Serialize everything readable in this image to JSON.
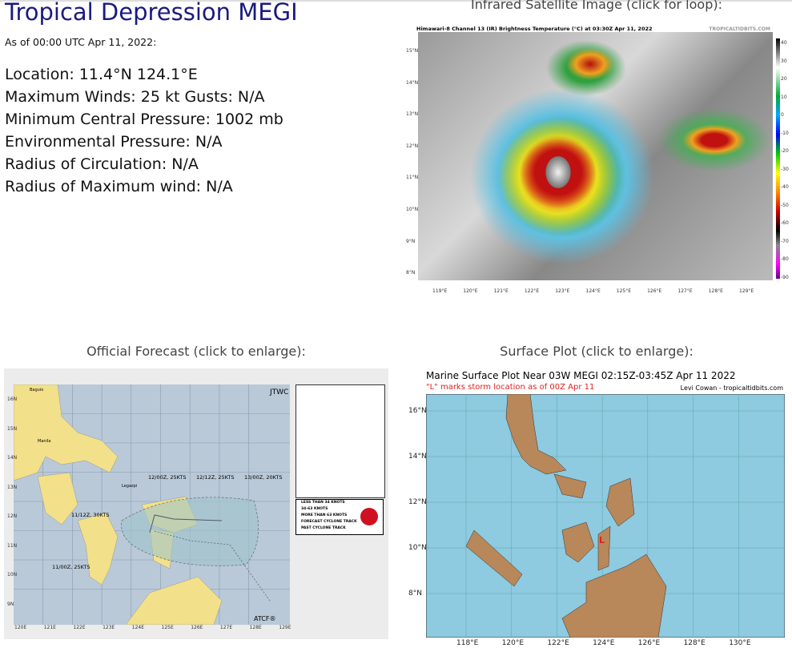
{
  "storm": {
    "title": "Tropical Depression MEGI",
    "as_of": "As of 00:00 UTC Apr 11, 2022:",
    "location": "Location: 11.4°N 124.1°E",
    "winds": "Maximum Winds: 25 kt  Gusts: N/A",
    "pressure": "Minimum Central Pressure: 1002 mb",
    "env_pressure": "Environmental Pressure: N/A",
    "radius_circ": "Radius of Circulation: N/A",
    "radius_max": "Radius of Maximum wind: N/A"
  },
  "satellite": {
    "caption": "Infrared Satellite Image (click for loop):",
    "title": "Himawari-8 Channel 13 (IR) Brightness Temperature (°C) at 03:30Z Apr 11, 2022",
    "credit": "TROPICALTIDBITS.COM",
    "lat_ticks": [
      "15°N",
      "14°N",
      "13°N",
      "12°N",
      "11°N",
      "10°N",
      "9°N",
      "8°N"
    ],
    "lon_ticks": [
      "119°E",
      "120°E",
      "121°E",
      "122°E",
      "123°E",
      "124°E",
      "125°E",
      "126°E",
      "127°E",
      "128°E",
      "129°E"
    ],
    "colorbar": [
      "40",
      "30",
      "20",
      "10",
      "0",
      "-10",
      "-20",
      "-30",
      "-40",
      "-50",
      "-60",
      "-70",
      "-80",
      "-90"
    ]
  },
  "forecast": {
    "caption": "Official Forecast (click to enlarge):",
    "agency": "JTWC",
    "footer": "ATCF®",
    "labels": [
      "12/00Z, 25KTS",
      "12/12Z, 25KTS",
      "13/00Z, 20KTS",
      "11/12Z, 30KTS",
      "11/00Z, 25KTS"
    ],
    "cities": [
      "Baguio",
      "Manila",
      "Legazpi"
    ],
    "legend": [
      "LESS THAN 34 KNOTS",
      "34-63 KNOTS",
      "MORE THAN 63 KNOTS",
      "FORECAST CYCLONE TRACK",
      "PAST CYCLONE TRACK"
    ],
    "lat_ticks": [
      "16N",
      "15N",
      "14N",
      "13N",
      "12N",
      "11N",
      "10N",
      "9N"
    ],
    "lon_ticks": [
      "120E",
      "121E",
      "122E",
      "123E",
      "124E",
      "125E",
      "126E",
      "127E",
      "128E",
      "129E"
    ]
  },
  "surface": {
    "caption": "Surface Plot (click to enlarge):",
    "title": "Marine Surface Plot Near 03W MEGI 02:15Z-03:45Z Apr 11 2022",
    "subtitle": "\"L\" marks storm location as of 00Z Apr 11",
    "credit": "Levi Cowan - tropicaltidbits.com",
    "lat_ticks": [
      "16°N",
      "14°N",
      "12°N",
      "10°N",
      "8°N"
    ],
    "lon_ticks": [
      "118°E",
      "120°E",
      "122°E",
      "124°E",
      "126°E",
      "128°E",
      "130°E"
    ],
    "storm_marker": "L"
  },
  "colors": {
    "title": "#1a1a80",
    "ocean": "#8ecae0",
    "land": "#b8875a",
    "fc_land": "#f2e08a",
    "fc_ocean": "#b9c9d8",
    "alert": "#e02020"
  }
}
